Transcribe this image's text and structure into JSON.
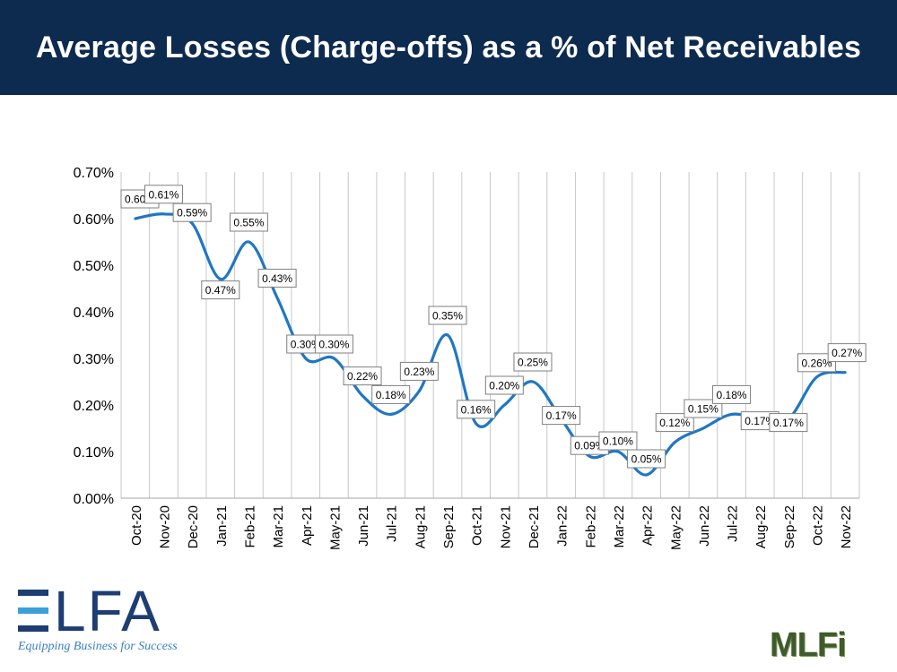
{
  "header": {
    "title": "Average Losses (Charge-offs) as a % of Net Receivables"
  },
  "colors": {
    "header_bg": "#0d2a4f",
    "line": "#1f77c4",
    "grid": "#c8c8c8",
    "elfa_blue": "#1d3d73",
    "elfa_light": "#3aa1d8",
    "mlfi_green": "#3f5a2c"
  },
  "logos": {
    "elfa": {
      "word": "LFA",
      "tagline": "Equipping Business for Success"
    },
    "mlfi": {
      "word": "MLFi"
    }
  },
  "chart_data": {
    "type": "line",
    "title": "",
    "xlabel": "",
    "ylabel": "",
    "ylim": [
      0,
      0.7
    ],
    "yticks": [
      "0.00%",
      "0.10%",
      "0.20%",
      "0.30%",
      "0.40%",
      "0.50%",
      "0.60%",
      "0.70%"
    ],
    "grid": "vertical",
    "categories": [
      "Oct-20",
      "Nov-20",
      "Dec-20",
      "Jan-21",
      "Feb-21",
      "Mar-21",
      "Apr-21",
      "May-21",
      "Jun-21",
      "Jul-21",
      "Aug-21",
      "Sep-21",
      "Oct-21",
      "Nov-21",
      "Dec-21",
      "Jan-22",
      "Feb-22",
      "Mar-22",
      "Apr-22",
      "May-22",
      "Jun-22",
      "Jul-22",
      "Aug-22",
      "Sep-22",
      "Oct-22",
      "Nov-22"
    ],
    "values": [
      0.6,
      0.61,
      0.59,
      0.47,
      0.55,
      0.43,
      0.3,
      0.3,
      0.22,
      0.18,
      0.23,
      0.35,
      0.16,
      0.2,
      0.25,
      0.17,
      0.09,
      0.1,
      0.05,
      0.12,
      0.15,
      0.18,
      0.17,
      0.17,
      0.26,
      0.27
    ],
    "data_labels": [
      "0.60%",
      "0.61%",
      "0.59%",
      "0.47%",
      "0.55%",
      "0.43%",
      "0.30%",
      "0.30%",
      "0.22%",
      "0.18%",
      "0.23%",
      "0.35%",
      "0.16%",
      "0.20%",
      "0.25%",
      "0.17%",
      "0.09%",
      "0.10%",
      "0.05%",
      "0.12%",
      "0.15%",
      "0.18%",
      "0.17%",
      "0.17%",
      "0.26%",
      "0.27%"
    ]
  }
}
